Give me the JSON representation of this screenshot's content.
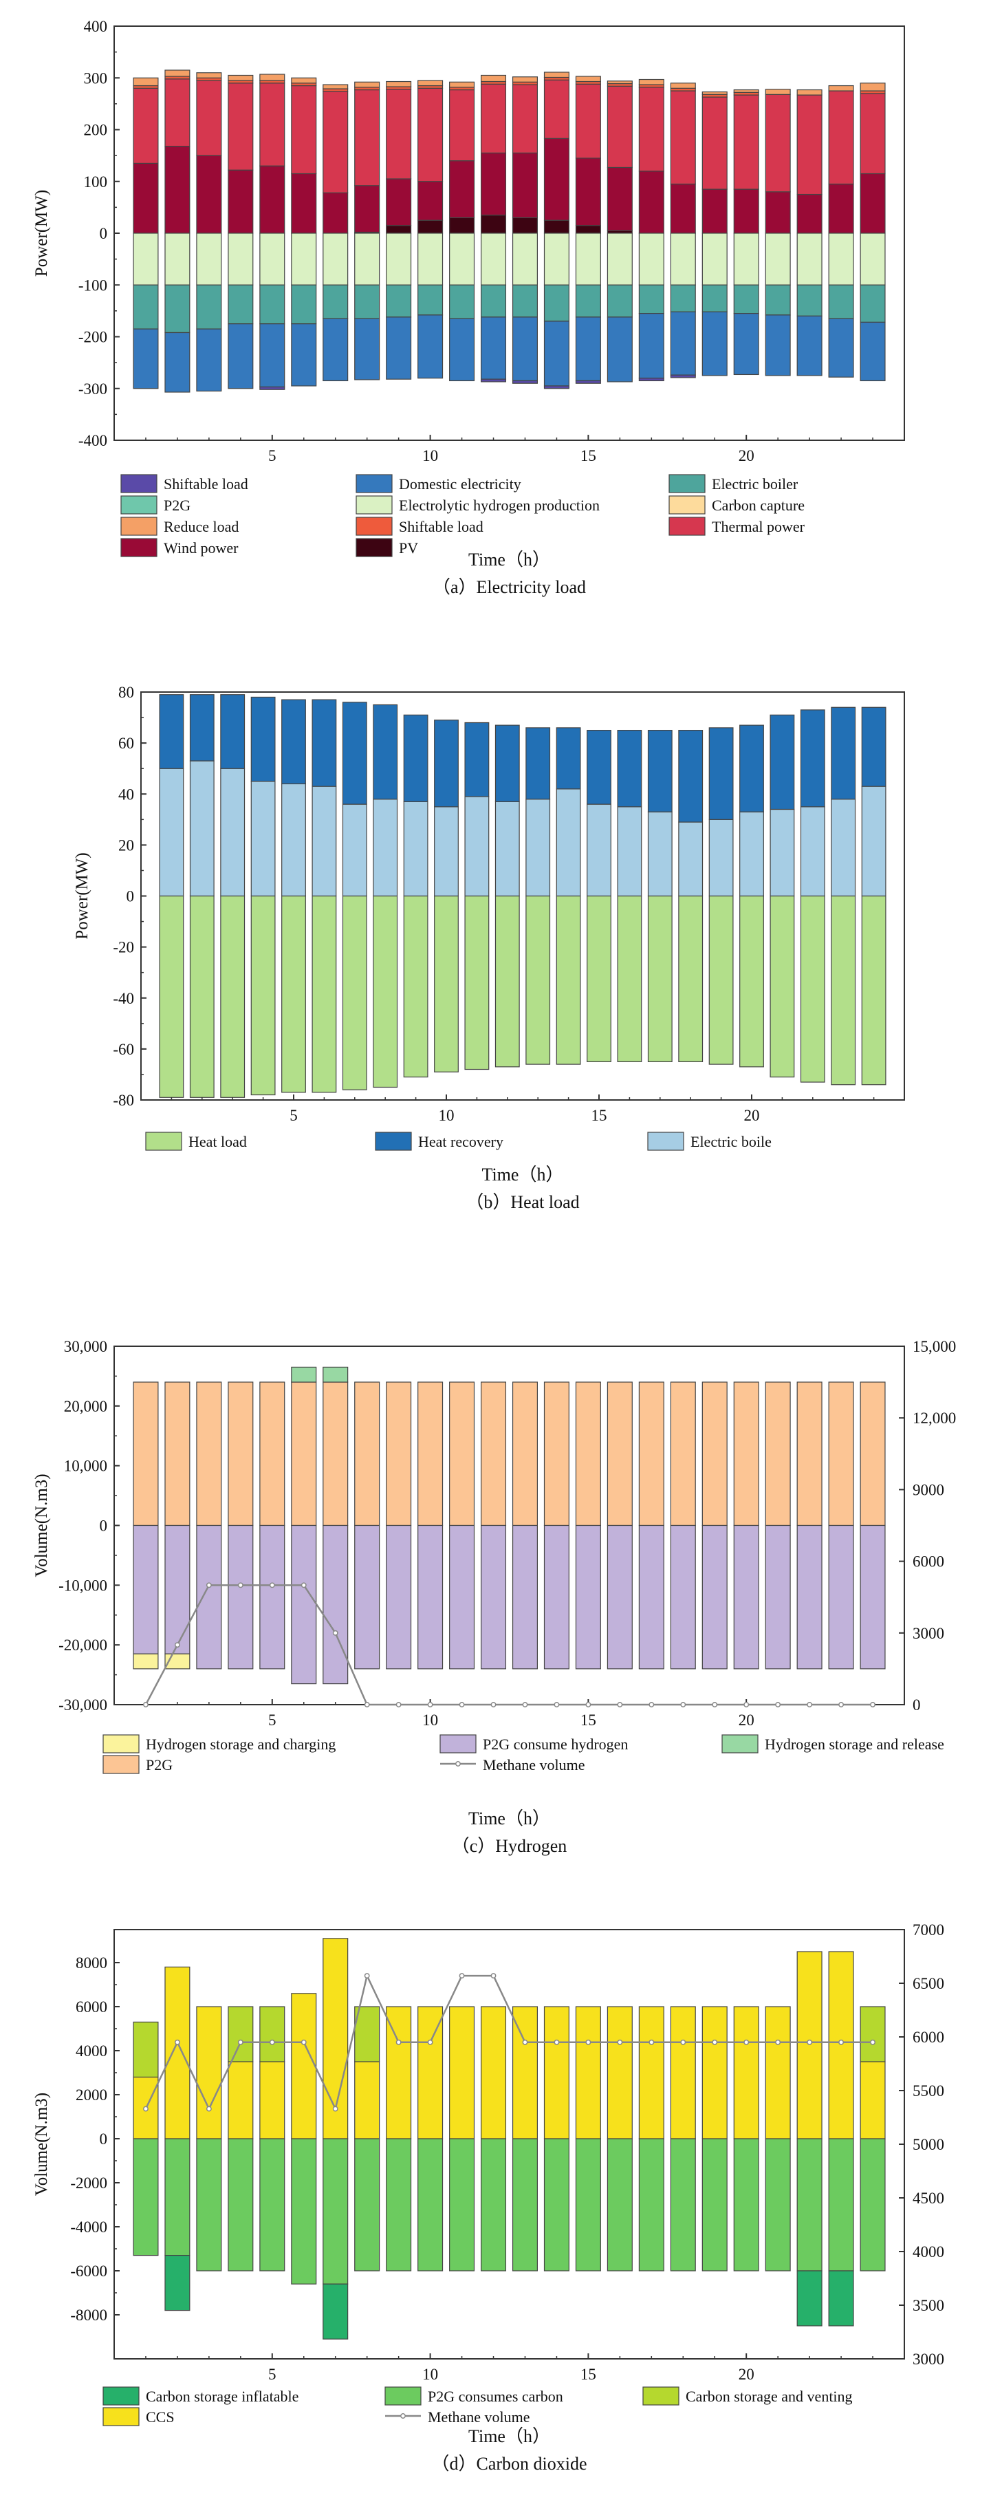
{
  "hours": [
    1,
    2,
    3,
    4,
    5,
    6,
    7,
    8,
    9,
    10,
    11,
    12,
    13,
    14,
    15,
    16,
    17,
    18,
    19,
    20,
    21,
    22,
    23,
    24
  ],
  "chart_data": [
    {
      "type": "bar",
      "stacked": true,
      "caption": "（a）Electricity load",
      "xlabel": "Time（h）",
      "ylabel": "Power(MW)",
      "ylim": [
        -400,
        400
      ],
      "yticks": [
        -400,
        -300,
        -200,
        -100,
        0,
        100,
        200,
        300,
        400
      ],
      "xticks": [
        5,
        10,
        15,
        20
      ],
      "positive_series": [
        {
          "name": "PV",
          "color": "#3d0412",
          "values": [
            0,
            0,
            0,
            0,
            0,
            0,
            0,
            2,
            15,
            25,
            30,
            35,
            30,
            25,
            15,
            5,
            0,
            0,
            0,
            0,
            0,
            0,
            0,
            0
          ]
        },
        {
          "name": "Wind power",
          "color": "#990a36",
          "values": [
            135,
            168,
            150,
            122,
            130,
            115,
            78,
            90,
            90,
            75,
            110,
            120,
            125,
            158,
            130,
            122,
            120,
            95,
            85,
            85,
            80,
            75,
            95,
            115
          ]
        },
        {
          "name": "Thermal power",
          "color": "#d6374f",
          "values": [
            145,
            130,
            145,
            168,
            160,
            170,
            196,
            185,
            173,
            180,
            137,
            133,
            132,
            113,
            143,
            157,
            162,
            180,
            178,
            182,
            188,
            192,
            180,
            155
          ]
        },
        {
          "name": "Shiftable load",
          "color": "#ee5b3c",
          "values": [
            5,
            5,
            5,
            5,
            5,
            5,
            5,
            5,
            5,
            5,
            5,
            5,
            5,
            5,
            5,
            5,
            5,
            5,
            5,
            5,
            0,
            0,
            0,
            5
          ]
        },
        {
          "name": "Reduce load",
          "color": "#f4a066",
          "values": [
            15,
            12,
            10,
            10,
            12,
            10,
            8,
            10,
            10,
            10,
            10,
            12,
            10,
            10,
            10,
            5,
            10,
            10,
            5,
            5,
            10,
            10,
            10,
            15
          ]
        }
      ],
      "negative_series": [
        {
          "name": "Electrolytic hydrogen production",
          "color": "#daf1c3",
          "values": [
            -100,
            -100,
            -100,
            -100,
            -100,
            -100,
            -100,
            -100,
            -100,
            -100,
            -100,
            -100,
            -100,
            -100,
            -100,
            -100,
            -100,
            -100,
            -100,
            -100,
            -100,
            -100,
            -100,
            -100
          ]
        },
        {
          "name": "Electric boiler",
          "color": "#4ea59c",
          "values": [
            -85,
            -92,
            -85,
            -75,
            -75,
            -75,
            -65,
            -65,
            -62,
            -58,
            -65,
            -62,
            -62,
            -70,
            -62,
            -62,
            -55,
            -52,
            -52,
            -55,
            -58,
            -60,
            -65,
            -72
          ]
        },
        {
          "name": "Domestic electricity",
          "color": "#3579bd",
          "values": [
            -115,
            -115,
            -120,
            -125,
            -122,
            -120,
            -120,
            -118,
            -120,
            -122,
            -120,
            -120,
            -123,
            -125,
            -123,
            -125,
            -125,
            -122,
            -123,
            -118,
            -117,
            -115,
            -113,
            -113
          ]
        },
        {
          "name": "Shiftable load",
          "color": "#5a4aa8",
          "values": [
            0,
            0,
            0,
            0,
            -5,
            0,
            0,
            0,
            0,
            0,
            0,
            -5,
            -5,
            -5,
            -5,
            0,
            -5,
            -5,
            0,
            0,
            0,
            0,
            0,
            0
          ]
        }
      ],
      "legend": [
        {
          "name": "Shiftable load",
          "color": "#5a4aa8"
        },
        {
          "name": "Domestic electricity",
          "color": "#3579bd"
        },
        {
          "name": "Electric boiler",
          "color": "#4ea59c"
        },
        {
          "name": "P2G",
          "color": "#6fc7ab"
        },
        {
          "name": "Electrolytic hydrogen production",
          "color": "#daf1c3"
        },
        {
          "name": "Carbon capture",
          "color": "#fddb9c"
        },
        {
          "name": "Reduce load",
          "color": "#f4a066"
        },
        {
          "name": "Shiftable load",
          "color": "#ee5b3c"
        },
        {
          "name": "Thermal power",
          "color": "#d6374f"
        },
        {
          "name": "Wind power",
          "color": "#990a36"
        },
        {
          "name": "PV",
          "color": "#3d0412"
        }
      ]
    },
    {
      "type": "bar",
      "stacked": true,
      "caption": "（b）Heat load",
      "xlabel": "Time（h）",
      "ylabel": "Power(MW)",
      "ylim": [
        -80,
        80
      ],
      "yticks": [
        -80,
        -60,
        -40,
        -20,
        0,
        20,
        40,
        60,
        80
      ],
      "xticks": [
        5,
        10,
        15,
        20
      ],
      "positive_series": [
        {
          "name": "Electric boile",
          "color": "#a6cde4",
          "values": [
            50,
            53,
            50,
            45,
            44,
            43,
            36,
            38,
            37,
            35,
            39,
            37,
            38,
            42,
            36,
            35,
            33,
            29,
            30,
            33,
            34,
            35,
            38,
            43
          ]
        },
        {
          "name": "Heat recovery",
          "color": "#2270b5",
          "values": [
            29,
            26,
            29,
            33,
            33,
            34,
            40,
            37,
            34,
            34,
            29,
            30,
            28,
            24,
            29,
            30,
            32,
            36,
            36,
            34,
            37,
            38,
            36,
            31
          ]
        }
      ],
      "negative_series": [
        {
          "name": "Heat load",
          "color": "#b2df8a",
          "values": [
            -79,
            -79,
            -79,
            -78,
            -77,
            -77,
            -76,
            -75,
            -71,
            -69,
            -68,
            -67,
            -66,
            -66,
            -65,
            -65,
            -65,
            -65,
            -66,
            -67,
            -71,
            -73,
            -74,
            -74
          ]
        }
      ],
      "legend": [
        {
          "name": "Heat load",
          "color": "#b2df8a"
        },
        {
          "name": "Heat recovery",
          "color": "#2270b5"
        },
        {
          "name": "Electric boile",
          "color": "#a6cde4"
        }
      ]
    },
    {
      "type": "bar",
      "stacked": true,
      "caption": "（c）Hydrogen",
      "xlabel": "Time（h）",
      "ylabel": "Volume(N.m3)",
      "ylim": [
        -30000,
        30000
      ],
      "yticks": [
        -30000,
        -20000,
        -10000,
        0,
        10000,
        20000,
        30000
      ],
      "ytick_labels": [
        "-30,000",
        "-20,000",
        "-10,000",
        "0",
        "10,000",
        "20,000",
        "30,000"
      ],
      "y2lim": [
        0,
        15000
      ],
      "y2ticks": [
        0,
        3000,
        6000,
        9000,
        12000,
        15000
      ],
      "y2tick_labels": [
        "0",
        "3000",
        "6000",
        "9000",
        "12,000",
        "15,000"
      ],
      "xticks": [
        5,
        10,
        15,
        20
      ],
      "positive_series": [
        {
          "name": "P2G",
          "color": "#fcc594",
          "values": [
            24000,
            24000,
            24000,
            24000,
            24000,
            24000,
            24000,
            24000,
            24000,
            24000,
            24000,
            24000,
            24000,
            24000,
            24000,
            24000,
            24000,
            24000,
            24000,
            24000,
            24000,
            24000,
            24000,
            24000
          ]
        },
        {
          "name": "Hydrogen storage and release",
          "color": "#98d8a3",
          "values": [
            0,
            0,
            0,
            0,
            0,
            2500,
            2500,
            0,
            0,
            0,
            0,
            0,
            0,
            0,
            0,
            0,
            0,
            0,
            0,
            0,
            0,
            0,
            0,
            0
          ]
        }
      ],
      "negative_series": [
        {
          "name": "P2G consume hydrogen",
          "color": "#c1b2da",
          "values": [
            -21500,
            -21500,
            -24000,
            -24000,
            -24000,
            -26500,
            -26500,
            -24000,
            -24000,
            -24000,
            -24000,
            -24000,
            -24000,
            -24000,
            -24000,
            -24000,
            -24000,
            -24000,
            -24000,
            -24000,
            -24000,
            -24000,
            -24000,
            -24000
          ]
        },
        {
          "name": "Hydrogen storage and charging",
          "color": "#fbf39c",
          "values": [
            -2500,
            -2500,
            0,
            0,
            0,
            0,
            0,
            0,
            0,
            0,
            0,
            0,
            0,
            0,
            0,
            0,
            0,
            0,
            0,
            0,
            0,
            0,
            0,
            0
          ]
        }
      ],
      "line_series": {
        "name": "Methane volume",
        "color": "#888888",
        "axis": "right",
        "values": [
          0,
          2500,
          5000,
          5000,
          5000,
          5000,
          3000,
          0,
          0,
          0,
          0,
          0,
          0,
          0,
          0,
          0,
          0,
          0,
          0,
          0,
          0,
          0,
          0,
          0
        ]
      },
      "legend": [
        {
          "name": "Hydrogen storage and charging",
          "color": "#fbf39c"
        },
        {
          "name": "P2G consume hydrogen",
          "color": "#c1b2da"
        },
        {
          "name": "Hydrogen storage and release",
          "color": "#98d8a3"
        },
        {
          "name": "P2G",
          "color": "#fcc594"
        },
        {
          "name": "Methane volume",
          "color": "#888888",
          "kind": "line"
        }
      ]
    },
    {
      "type": "bar",
      "stacked": true,
      "caption": "（d）Carbon dioxide",
      "xlabel": "Time（h）",
      "ylabel": "Volume(N.m3)",
      "ylim": [
        -10000,
        9500
      ],
      "yticks": [
        -8000,
        -6000,
        -4000,
        -2000,
        0,
        2000,
        4000,
        6000,
        8000
      ],
      "y2lim": [
        3000,
        7000
      ],
      "y2ticks": [
        3000,
        3500,
        4000,
        4500,
        5000,
        5500,
        6000,
        6500,
        7000
      ],
      "xticks": [
        5,
        10,
        15,
        20
      ],
      "positive_series": [
        {
          "name": "CCS",
          "color": "#f7e11c",
          "values": [
            2800,
            7800,
            6000,
            3500,
            3500,
            6600,
            9100,
            3500,
            6000,
            6000,
            6000,
            6000,
            6000,
            6000,
            6000,
            6000,
            6000,
            6000,
            6000,
            6000,
            6000,
            8500,
            8500,
            3500
          ]
        },
        {
          "name": "Carbon storage and venting",
          "color": "#b5d82e",
          "values": [
            2500,
            0,
            0,
            2500,
            2500,
            0,
            0,
            2500,
            0,
            0,
            0,
            0,
            0,
            0,
            0,
            0,
            0,
            0,
            0,
            0,
            0,
            0,
            0,
            2500
          ]
        }
      ],
      "negative_series": [
        {
          "name": "P2G consumes carbon",
          "color": "#6ccb5f",
          "values": [
            -5300,
            -5300,
            -6000,
            -6000,
            -6000,
            -6600,
            -6600,
            -6000,
            -6000,
            -6000,
            -6000,
            -6000,
            -6000,
            -6000,
            -6000,
            -6000,
            -6000,
            -6000,
            -6000,
            -6000,
            -6000,
            -6000,
            -6000,
            -6000
          ]
        },
        {
          "name": "Carbon storage inflatable",
          "color": "#26b06a",
          "values": [
            0,
            -2500,
            0,
            0,
            0,
            0,
            -2500,
            0,
            0,
            0,
            0,
            0,
            0,
            0,
            0,
            0,
            0,
            0,
            0,
            0,
            0,
            -2500,
            -2500,
            0
          ]
        }
      ],
      "line_series": {
        "name": "Methane volume",
        "color": "#888888",
        "axis": "right",
        "values": [
          5330,
          5950,
          5330,
          5950,
          5950,
          5950,
          5330,
          6570,
          5950,
          5950,
          6570,
          6570,
          5950,
          5950,
          5950,
          5950,
          5950,
          5950,
          5950,
          5950,
          5950,
          5950,
          5950,
          5950
        ]
      },
      "legend": [
        {
          "name": "Carbon storage inflatable",
          "color": "#26b06a"
        },
        {
          "name": "P2G consumes carbon",
          "color": "#6ccb5f"
        },
        {
          "name": "Carbon storage and venting",
          "color": "#b5d82e"
        },
        {
          "name": "CCS",
          "color": "#f7e11c"
        },
        {
          "name": "Methane volume",
          "color": "#888888",
          "kind": "line"
        }
      ]
    }
  ]
}
